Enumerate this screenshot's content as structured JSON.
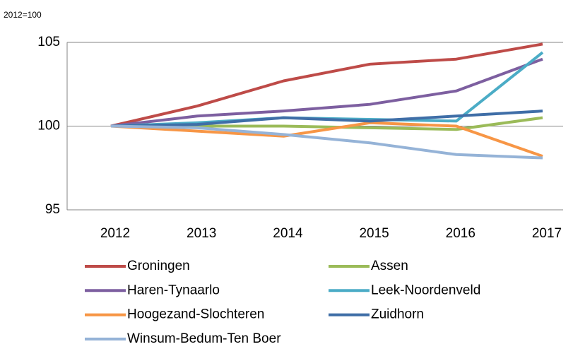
{
  "chart_data": {
    "type": "line",
    "y_label": "2012=100",
    "categories": [
      "2012",
      "2013",
      "2014",
      "2015",
      "2016",
      "2017"
    ],
    "series": [
      {
        "name": "Groningen",
        "color": "#be4b48",
        "values": [
          100,
          101.2,
          102.7,
          103.7,
          104.0,
          104.9
        ]
      },
      {
        "name": "Assen",
        "color": "#9bbb59",
        "values": [
          100,
          100.0,
          100.0,
          99.9,
          99.8,
          100.5
        ]
      },
      {
        "name": "Haren-Tynaarlo",
        "color": "#7d5fa0",
        "values": [
          100,
          100.6,
          100.9,
          101.3,
          102.1,
          104.0
        ]
      },
      {
        "name": "Leek-Noordenveld",
        "color": "#4bacc6",
        "values": [
          100,
          100.2,
          100.5,
          100.4,
          100.3,
          104.4
        ]
      },
      {
        "name": "Hoogezand-Slochteren",
        "color": "#f79646",
        "values": [
          100,
          99.7,
          99.4,
          100.2,
          100.0,
          98.2
        ]
      },
      {
        "name": "Zuidhorn",
        "color": "#3f6ea7",
        "values": [
          100,
          100.1,
          100.5,
          100.3,
          100.6,
          100.9
        ]
      },
      {
        "name": "Winsum-Bedum-Ten Boer",
        "color": "#95b3d7",
        "values": [
          100,
          99.9,
          99.5,
          99.0,
          98.3,
          98.1
        ]
      }
    ],
    "ylim": [
      95,
      105
    ],
    "yticks": [
      95,
      100,
      105
    ],
    "grid": true
  }
}
